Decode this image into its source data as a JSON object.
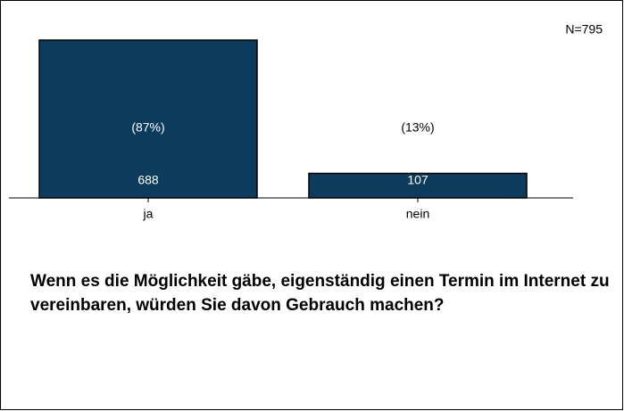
{
  "chart_data": {
    "type": "bar",
    "title": "Wenn es die Möglichkeit gäbe, eigenständig einen Termin im Internet zu vereinbaren, würden Sie davon Gebrauch machen?",
    "annotation": "N=795",
    "categories": [
      "ja",
      "nein"
    ],
    "values": [
      688,
      107
    ],
    "shares": {
      "values": [
        87,
        13
      ],
      "value_labels": [
        "(87%)",
        "(13%)"
      ]
    },
    "color": "#0d3b5e",
    "grid": false
  }
}
